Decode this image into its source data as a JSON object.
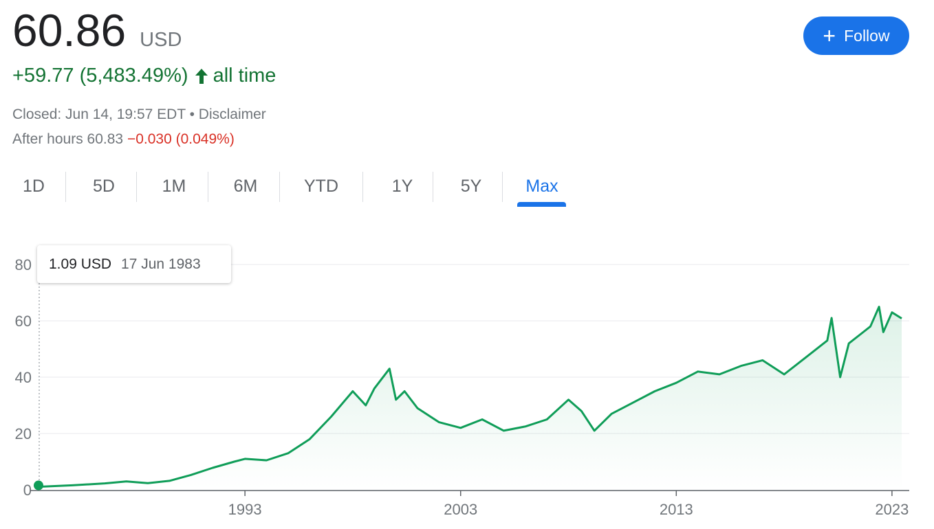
{
  "quote": {
    "price": "60.86",
    "currency": "USD",
    "change_text": "+59.77 (5,483.49%)",
    "period_label": "all time",
    "closed_text": "Closed: Jun 14, 19:57 EDT • Disclaimer",
    "after_hours_label": "After hours 60.83",
    "after_hours_change": "−0.030 (0.049%)"
  },
  "follow_button": {
    "label": "Follow"
  },
  "tabs": [
    {
      "label": "1D",
      "active": false
    },
    {
      "label": "5D",
      "active": false
    },
    {
      "label": "1M",
      "active": false
    },
    {
      "label": "6M",
      "active": false
    },
    {
      "label": "YTD",
      "active": false
    },
    {
      "label": "1Y",
      "active": false
    },
    {
      "label": "5Y",
      "active": false
    },
    {
      "label": "Max",
      "active": true
    }
  ],
  "tooltip": {
    "value": "1.09 USD",
    "date": "17 Jun 1983"
  },
  "colors": {
    "up": "#137333",
    "down": "#d93025",
    "accent": "#1a73e8",
    "line": "#0f9d58"
  },
  "chart_data": {
    "type": "area",
    "y_ticks": [
      0,
      20,
      40,
      60,
      80
    ],
    "ylim": [
      0,
      80
    ],
    "x_ticks": [
      "1993",
      "2003",
      "2013",
      "2023"
    ],
    "xlim": [
      1983.46,
      2023.45
    ],
    "grid": true,
    "series": [
      {
        "x": [
          1983.46,
          1985.0,
          1986.5,
          1987.5,
          1988.5,
          1989.5,
          1990.5,
          1991.5,
          1992.5,
          1993.0,
          1994.0,
          1995.0,
          1996.0,
          1997.0,
          1998.0,
          1998.6,
          1999.0,
          1999.7,
          2000.0,
          2000.4,
          2001.0,
          2002.0,
          2003.0,
          2004.0,
          2005.0,
          2006.0,
          2007.0,
          2008.0,
          2008.6,
          2009.2,
          2010.0,
          2011.0,
          2012.0,
          2013.0,
          2014.0,
          2015.0,
          2016.0,
          2017.0,
          2018.0,
          2019.0,
          2020.0,
          2020.2,
          2020.6,
          2021.0,
          2021.5,
          2022.0,
          2022.4,
          2022.6,
          2023.0,
          2023.45
        ],
        "y": [
          1.09,
          1.6,
          2.3,
          3.0,
          2.4,
          3.2,
          5.3,
          7.8,
          10.0,
          11.0,
          10.5,
          13.0,
          18.0,
          26.0,
          35.0,
          30.0,
          36.0,
          43.0,
          32.0,
          35.0,
          29.0,
          24.0,
          22.0,
          25.0,
          21.0,
          22.5,
          25.0,
          32.0,
          28.0,
          21.0,
          27.0,
          31.0,
          35.0,
          38.0,
          42.0,
          41.0,
          44.0,
          46.0,
          41.0,
          47.0,
          53.0,
          61.0,
          40.0,
          52.0,
          55.0,
          58.0,
          65.0,
          56.0,
          63.0,
          60.86
        ]
      }
    ]
  }
}
